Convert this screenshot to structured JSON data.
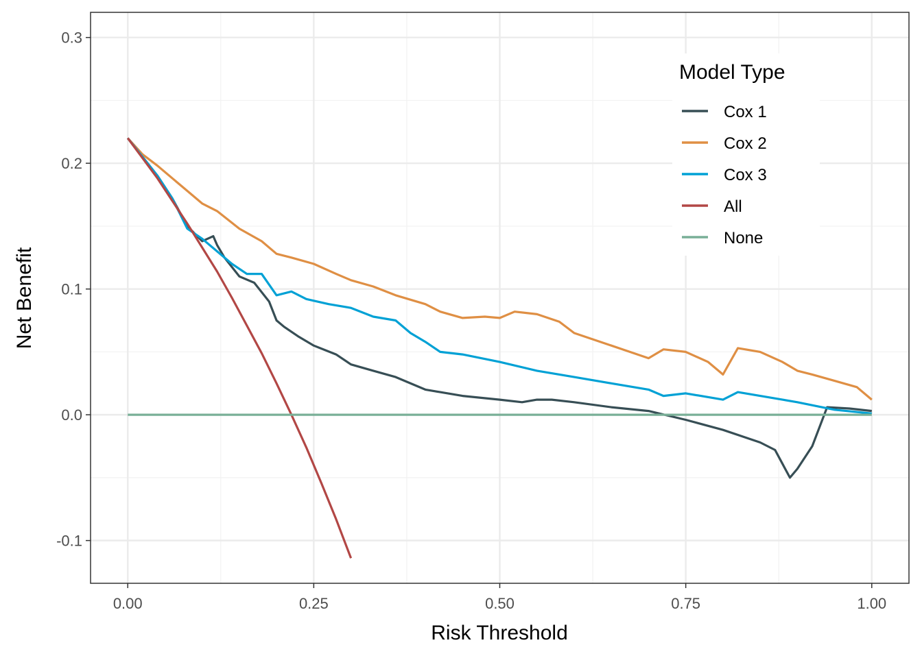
{
  "chart_data": {
    "type": "line",
    "xlabel": "Risk Threshold",
    "ylabel": "Net Benefit",
    "xlim": [
      -0.05,
      1.05
    ],
    "ylim": [
      -0.134,
      0.32
    ],
    "x_ticks": [
      0.0,
      0.25,
      0.5,
      0.75,
      1.0
    ],
    "x_tick_labels": [
      "0.00",
      "0.25",
      "0.50",
      "0.75",
      "1.00"
    ],
    "y_ticks": [
      -0.1,
      0.0,
      0.1,
      0.2,
      0.3
    ],
    "y_tick_labels": [
      "-0.1",
      "0.0",
      "0.1",
      "0.2",
      "0.3"
    ],
    "grid": true,
    "legend": {
      "title": "Model Type",
      "position": "top-right",
      "entries": [
        "Cox 1",
        "Cox 2",
        "Cox 3",
        "All",
        "None"
      ]
    },
    "series": [
      {
        "name": "Cox 1",
        "color": "#374e55",
        "x": [
          0.0,
          0.02,
          0.04,
          0.06,
          0.08,
          0.1,
          0.115,
          0.12,
          0.13,
          0.15,
          0.17,
          0.19,
          0.2,
          0.21,
          0.23,
          0.25,
          0.28,
          0.3,
          0.33,
          0.36,
          0.4,
          0.42,
          0.45,
          0.5,
          0.53,
          0.55,
          0.57,
          0.6,
          0.65,
          0.7,
          0.75,
          0.8,
          0.85,
          0.87,
          0.89,
          0.9,
          0.92,
          0.94,
          0.97,
          1.0
        ],
        "y": [
          0.22,
          0.205,
          0.19,
          0.172,
          0.15,
          0.138,
          0.142,
          0.135,
          0.125,
          0.11,
          0.105,
          0.09,
          0.075,
          0.07,
          0.062,
          0.055,
          0.048,
          0.04,
          0.035,
          0.03,
          0.02,
          0.018,
          0.015,
          0.012,
          0.01,
          0.012,
          0.012,
          0.01,
          0.006,
          0.003,
          -0.004,
          -0.012,
          -0.022,
          -0.028,
          -0.05,
          -0.043,
          -0.025,
          0.006,
          0.005,
          0.003
        ]
      },
      {
        "name": "Cox 2",
        "color": "#df8f44",
        "x": [
          0.0,
          0.02,
          0.04,
          0.06,
          0.08,
          0.1,
          0.12,
          0.15,
          0.18,
          0.2,
          0.22,
          0.25,
          0.28,
          0.3,
          0.33,
          0.36,
          0.4,
          0.42,
          0.45,
          0.48,
          0.5,
          0.52,
          0.55,
          0.58,
          0.6,
          0.65,
          0.7,
          0.72,
          0.75,
          0.78,
          0.8,
          0.82,
          0.85,
          0.88,
          0.9,
          0.92,
          0.95,
          0.98,
          1.0
        ],
        "y": [
          0.22,
          0.207,
          0.198,
          0.188,
          0.178,
          0.168,
          0.162,
          0.148,
          0.138,
          0.128,
          0.125,
          0.12,
          0.112,
          0.107,
          0.102,
          0.095,
          0.088,
          0.082,
          0.077,
          0.078,
          0.077,
          0.082,
          0.08,
          0.074,
          0.065,
          0.055,
          0.045,
          0.052,
          0.05,
          0.042,
          0.032,
          0.053,
          0.05,
          0.042,
          0.035,
          0.032,
          0.027,
          0.022,
          0.012
        ]
      },
      {
        "name": "Cox 3",
        "color": "#00a1d5",
        "x": [
          0.0,
          0.02,
          0.04,
          0.06,
          0.08,
          0.1,
          0.12,
          0.14,
          0.16,
          0.18,
          0.2,
          0.22,
          0.24,
          0.27,
          0.3,
          0.33,
          0.36,
          0.38,
          0.4,
          0.42,
          0.45,
          0.5,
          0.55,
          0.6,
          0.65,
          0.7,
          0.72,
          0.75,
          0.8,
          0.82,
          0.85,
          0.88,
          0.9,
          0.95,
          1.0
        ],
        "y": [
          0.22,
          0.205,
          0.19,
          0.172,
          0.148,
          0.14,
          0.13,
          0.12,
          0.112,
          0.112,
          0.095,
          0.098,
          0.092,
          0.088,
          0.085,
          0.078,
          0.075,
          0.065,
          0.058,
          0.05,
          0.048,
          0.042,
          0.035,
          0.03,
          0.025,
          0.02,
          0.015,
          0.017,
          0.012,
          0.018,
          0.015,
          0.012,
          0.01,
          0.004,
          0.001
        ]
      },
      {
        "name": "All",
        "color": "#b24745",
        "x": [
          0.0,
          0.02,
          0.04,
          0.06,
          0.08,
          0.1,
          0.12,
          0.14,
          0.16,
          0.18,
          0.2,
          0.22,
          0.24,
          0.26,
          0.28,
          0.3
        ],
        "y": [
          0.22,
          0.204,
          0.188,
          0.17,
          0.152,
          0.133,
          0.114,
          0.093,
          0.071,
          0.049,
          0.025,
          0.0,
          -0.026,
          -0.054,
          -0.083,
          -0.114
        ]
      },
      {
        "name": "None",
        "color": "#79af97",
        "x": [
          0.0,
          1.0
        ],
        "y": [
          0.0,
          0.0
        ]
      }
    ]
  }
}
